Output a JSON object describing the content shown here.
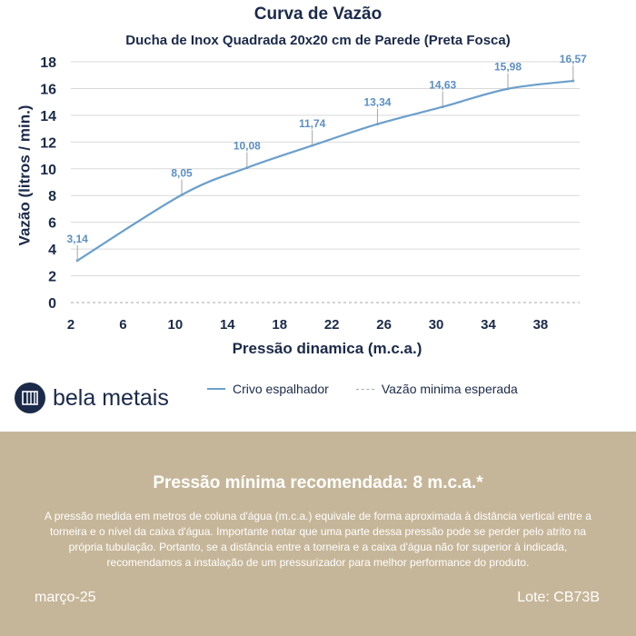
{
  "header": {
    "title": "Curva de Vazão",
    "subtitle": "Ducha de Inox Quadrada 20x20 cm de Parede (Preta Fosca)"
  },
  "chart_data": {
    "type": "line",
    "title": "Curva de Vazão",
    "subtitle": "Ducha de Inox Quadrada 20x20 cm de Parede (Preta Fosca)",
    "xlabel": "Pressão dinamica (m.c.a.)",
    "ylabel": "Vazão (litros / min.)",
    "xlim": [
      2,
      41
    ],
    "ylim": [
      0,
      18
    ],
    "x_ticks": [
      "2",
      "6",
      "10",
      "14",
      "18",
      "22",
      "26",
      "30",
      "34",
      "38"
    ],
    "y_ticks": [
      "0",
      "2",
      "4",
      "6",
      "8",
      "10",
      "12",
      "14",
      "16",
      "18"
    ],
    "grid": "horizontal",
    "legend": "bottom",
    "series": [
      {
        "name": "Crivo espalhador",
        "color": "#6b9fcb",
        "x": [
          2.5,
          10.5,
          15.5,
          20.5,
          25.5,
          30.5,
          35.5,
          40.5
        ],
        "values": [
          3.14,
          8.05,
          10.08,
          11.74,
          13.34,
          14.63,
          15.98,
          16.57
        ],
        "labels": [
          "3,14",
          "8,05",
          "10,08",
          "11,74",
          "13,34",
          "14,63",
          "15,98",
          "16,57"
        ]
      },
      {
        "name": "Vazão minima esperada",
        "color": "#aaaaaa",
        "style": "dashed",
        "x": [
          2,
          41
        ],
        "values": [
          0,
          0
        ]
      }
    ]
  },
  "legend": {
    "item1": "Crivo espalhador",
    "item2": "Vazão minima esperada"
  },
  "brand": {
    "name": "bela metais",
    "icon": "bela-metais-logo-icon"
  },
  "footer": {
    "headline": "Pressão mínima recomendada: 8 m.c.a.*",
    "text": "A pressão medida em metros de coluna d'água (m.c.a.) equivale de forma aproximada à distância vertical entre a torneira e o nível da caixa d'água. Importante notar que uma parte dessa pressão pode se perder pelo atrito na própria tubulação. Portanto, se a distância entre a torneira e a caixa d'água não for superior à indicada, recomendamos a instalação de um pressurizador para melhor performance do produto.",
    "date": "março-25",
    "lote": "Lote: CB73B"
  },
  "colors": {
    "navy": "#1b2a4a",
    "series": "#6b9fcb",
    "label": "#5b8fc4",
    "footer_bg": "#c6b699"
  }
}
